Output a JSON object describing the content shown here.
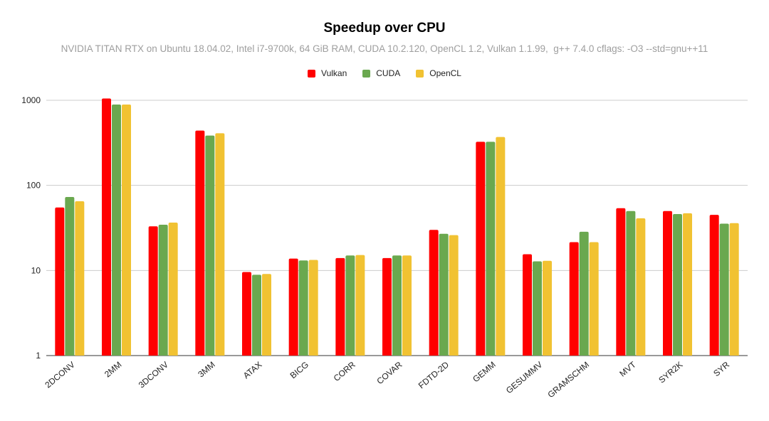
{
  "chart_data": {
    "type": "bar",
    "title": "Speedup over CPU",
    "subtitle": "NVIDIA TITAN RTX on Ubuntu 18.04.02, Intel i7-9700k, 64 GiB RAM, CUDA 10.2.120, OpenCL 1.2, Vulkan 1.1.99,  g++ 7.4.0 cflags: -O3 --std=gnu++11",
    "y_scale": "log",
    "ylim": [
      1,
      1000
    ],
    "y_ticks": [
      "1",
      "10",
      "100",
      "1000"
    ],
    "y_tick_values": [
      1,
      10,
      100,
      1000
    ],
    "grid": true,
    "legend_position": "top",
    "categories": [
      "2DCONV",
      "2MM",
      "3DCONV",
      "3MM",
      "ATAX",
      "BICG",
      "CORR",
      "COVAR",
      "FDTD-2D",
      "GEMM",
      "GESUMMV",
      "GRAMSCHM",
      "MVT",
      "SYR2K",
      "SYR"
    ],
    "series": [
      {
        "name": "Vulkan",
        "color": "#ff0000",
        "values": [
          55,
          1050,
          33,
          440,
          9.6,
          13.8,
          14,
          14,
          30,
          325,
          15.5,
          21.5,
          54,
          50,
          45
        ]
      },
      {
        "name": "CUDA",
        "color": "#6aa84f",
        "values": [
          73,
          890,
          34.5,
          385,
          8.9,
          13.1,
          15,
          15,
          27,
          325,
          12.8,
          28.5,
          50,
          46,
          35.5
        ]
      },
      {
        "name": "OpenCL",
        "color": "#f1c232",
        "values": [
          65,
          890,
          36.5,
          410,
          9.1,
          13.3,
          15.2,
          15,
          26,
          370,
          13,
          21.5,
          41,
          47,
          36
        ]
      }
    ]
  }
}
